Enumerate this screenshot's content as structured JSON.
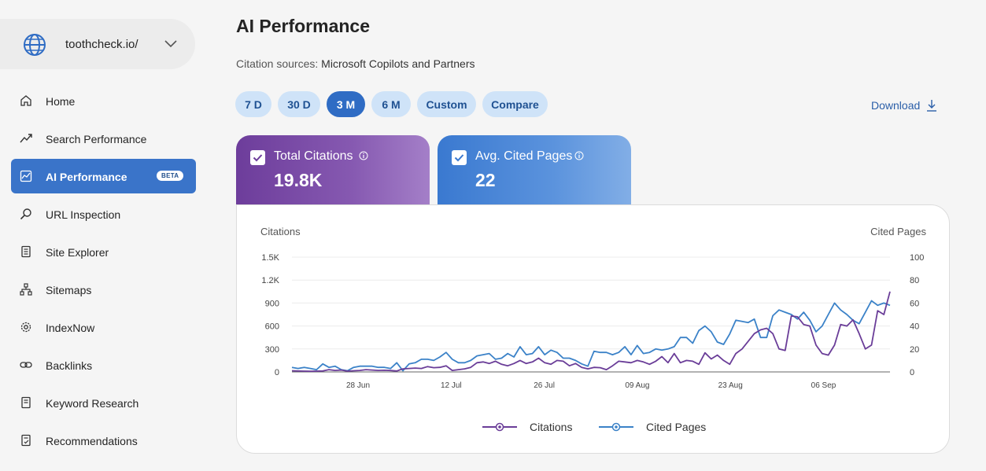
{
  "site": {
    "name": "toothcheck.io/"
  },
  "nav": [
    {
      "key": "home",
      "label": "Home"
    },
    {
      "key": "search-performance",
      "label": "Search Performance"
    },
    {
      "key": "ai-performance",
      "label": "AI Performance",
      "badge": "BETA",
      "active": true
    },
    {
      "key": "url-inspection",
      "label": "URL Inspection"
    },
    {
      "key": "site-explorer",
      "label": "Site Explorer"
    },
    {
      "key": "sitemaps",
      "label": "Sitemaps"
    },
    {
      "key": "indexnow",
      "label": "IndexNow"
    },
    {
      "key": "backlinks",
      "label": "Backlinks"
    },
    {
      "key": "keyword-research",
      "label": "Keyword Research"
    },
    {
      "key": "recommendations",
      "label": "Recommendations"
    }
  ],
  "page": {
    "title": "AI Performance",
    "sources_label": "Citation sources:",
    "sources_value": "Microsoft Copilots and Partners"
  },
  "ranges": [
    "7 D",
    "30 D",
    "3 M",
    "6 M",
    "Custom",
    "Compare"
  ],
  "active_range": "3 M",
  "download_label": "Download",
  "cards": {
    "citations": {
      "title": "Total Citations",
      "value": "19.8K"
    },
    "pages": {
      "title": "Avg. Cited Pages",
      "value": "22"
    }
  },
  "colors": {
    "citations": "#6a3d98",
    "pages": "#3b82c8",
    "accent": "#2f6cc4"
  },
  "chart_data": {
    "type": "line",
    "y_left_label": "Citations",
    "y_right_label": "Cited Pages",
    "y_left_ticks": [
      "0",
      "300",
      "600",
      "900",
      "1.2K",
      "1.5K"
    ],
    "y_right_ticks": [
      "0",
      "20",
      "40",
      "60",
      "80",
      "100"
    ],
    "ylim_left": [
      0,
      1500
    ],
    "ylim_right": [
      0,
      100
    ],
    "x_ticks": [
      "28 Jun",
      "12 Jul",
      "26 Jul",
      "09 Aug",
      "23 Aug",
      "06 Sep"
    ],
    "grid": true,
    "legend": "bottom-center",
    "series": [
      {
        "name": "Citations",
        "axis": "left",
        "values": [
          15,
          12,
          10,
          8,
          10,
          12,
          30,
          20,
          25,
          10,
          15,
          20,
          30,
          25,
          20,
          22,
          18,
          12,
          40,
          45,
          50,
          45,
          70,
          55,
          60,
          80,
          20,
          30,
          40,
          60,
          120,
          130,
          110,
          140,
          100,
          80,
          110,
          150,
          110,
          130,
          180,
          120,
          100,
          150,
          140,
          80,
          110,
          60,
          40,
          60,
          55,
          30,
          80,
          140,
          130,
          120,
          150,
          130,
          100,
          140,
          200,
          120,
          240,
          120,
          150,
          140,
          100,
          250,
          170,
          220,
          150,
          100,
          240,
          300,
          400,
          500,
          550,
          570,
          500,
          300,
          280,
          730,
          720,
          620,
          600,
          350,
          240,
          220,
          350,
          620,
          600,
          680,
          500,
          300,
          350,
          800,
          750,
          1050
        ]
      },
      {
        "name": "Cited Pages",
        "axis": "right",
        "values": [
          4,
          3,
          4,
          3,
          2,
          7,
          4,
          5,
          2,
          1,
          4,
          5,
          5,
          5,
          4,
          4,
          3,
          8,
          1,
          7,
          8,
          11,
          11,
          10,
          13,
          17,
          11,
          8,
          8,
          10,
          14,
          15,
          16,
          11,
          12,
          16,
          13,
          22,
          15,
          16,
          22,
          15,
          19,
          17,
          12,
          12,
          10,
          7,
          5,
          18,
          17,
          17,
          15,
          17,
          22,
          15,
          23,
          16,
          17,
          20,
          19,
          20,
          22,
          30,
          30,
          25,
          36,
          40,
          35,
          26,
          24,
          33,
          45,
          44,
          43,
          46,
          30,
          30,
          49,
          54,
          52,
          50,
          46,
          52,
          45,
          35,
          40,
          50,
          60,
          54,
          50,
          45,
          42,
          52,
          62,
          58,
          60,
          58
        ]
      }
    ]
  }
}
